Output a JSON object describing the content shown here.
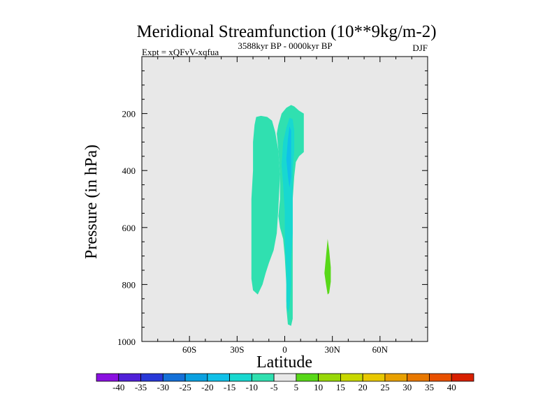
{
  "chart_data": {
    "type": "contour",
    "title": "Meridional Streamfunction (10**9kg/m-2)",
    "subtitle_left": "Expt = xQFvV-xqfua",
    "subtitle_center": "3588kyr BP - 0000kyr BP",
    "subtitle_right": "DJF",
    "xlabel": "Latitude",
    "ylabel": "Pressure (in hPa)",
    "xlim": [
      -90,
      90
    ],
    "ylim": [
      1000,
      0
    ],
    "x_ticks": [
      {
        "value": -60,
        "label": "60S"
      },
      {
        "value": -30,
        "label": "30S"
      },
      {
        "value": 0,
        "label": "0"
      },
      {
        "value": 30,
        "label": "30N"
      },
      {
        "value": 60,
        "label": "60N"
      }
    ],
    "x_minor_step": 10,
    "y_ticks": [
      {
        "value": 200,
        "label": "200"
      },
      {
        "value": 400,
        "label": "400"
      },
      {
        "value": 600,
        "label": "600"
      },
      {
        "value": 800,
        "label": "800"
      },
      {
        "value": 1000,
        "label": "1000"
      }
    ],
    "y_minor_step": 50,
    "colorbar": {
      "levels": [
        "-40",
        "-35",
        "-30",
        "-25",
        "-20",
        "-15",
        "-10",
        "-5",
        "5",
        "10",
        "15",
        "20",
        "25",
        "30",
        "35",
        "40"
      ],
      "colors": [
        "#8a10e0",
        "#5020d8",
        "#2838d8",
        "#1470d8",
        "#0aa0e0",
        "#10c0e8",
        "#18d8d0",
        "#30e0b0",
        "#e8e8e8",
        "#58d818",
        "#98d808",
        "#c8d800",
        "#e8c800",
        "#e8a000",
        "#e87800",
        "#e85000",
        "#d82000"
      ]
    },
    "regions": [
      {
        "name": "negative-west-cell",
        "level_index": 7,
        "color": "#30e0b0",
        "points": [
          [
            -18,
            212
          ],
          [
            -15,
            208
          ],
          [
            -11,
            212
          ],
          [
            -8,
            225
          ],
          [
            -6,
            265
          ],
          [
            -4,
            330
          ],
          [
            -3,
            420
          ],
          [
            -4,
            530
          ],
          [
            -5,
            620
          ],
          [
            -7,
            680
          ],
          [
            -10,
            725
          ],
          [
            -12,
            760
          ],
          [
            -14,
            800
          ],
          [
            -17,
            835
          ],
          [
            -20,
            820
          ],
          [
            -21,
            780
          ],
          [
            -21,
            700
          ],
          [
            -21,
            600
          ],
          [
            -21,
            500
          ],
          [
            -20,
            400
          ],
          [
            -20,
            300
          ],
          [
            -19,
            240
          ]
        ]
      },
      {
        "name": "negative-central-cell",
        "level_index": 7,
        "color": "#30e0b0",
        "points": [
          [
            -4,
            240
          ],
          [
            -2,
            200
          ],
          [
            1,
            180
          ],
          [
            4,
            170
          ],
          [
            6,
            175
          ],
          [
            7,
            180
          ],
          [
            9,
            190
          ],
          [
            12,
            200
          ],
          [
            12,
            230
          ],
          [
            12,
            260
          ],
          [
            12,
            300
          ],
          [
            12,
            335
          ],
          [
            9,
            350
          ],
          [
            7,
            370
          ],
          [
            6,
            420
          ],
          [
            5,
            500
          ],
          [
            5,
            600
          ],
          [
            5,
            700
          ],
          [
            5,
            780
          ],
          [
            5,
            860
          ],
          [
            5,
            920
          ],
          [
            4,
            945
          ],
          [
            2,
            940
          ],
          [
            1,
            880
          ],
          [
            1,
            800
          ],
          [
            0,
            700
          ],
          [
            -1,
            640
          ],
          [
            -3,
            600
          ],
          [
            -4,
            560
          ],
          [
            -3,
            500
          ],
          [
            -3,
            420
          ],
          [
            -4,
            330
          ],
          [
            -5,
            270
          ]
        ]
      },
      {
        "name": "negative-core-cell",
        "level_index": 6,
        "color": "#18d8d0",
        "points": [
          [
            -1,
            300
          ],
          [
            1,
            250
          ],
          [
            3,
            215
          ],
          [
            5,
            220
          ],
          [
            6,
            260
          ],
          [
            6,
            330
          ],
          [
            5,
            400
          ],
          [
            5,
            500
          ],
          [
            5,
            620
          ],
          [
            4,
            720
          ],
          [
            4,
            800
          ],
          [
            3,
            880
          ],
          [
            2,
            900
          ],
          [
            1,
            860
          ],
          [
            1,
            760
          ],
          [
            0,
            640
          ],
          [
            0,
            540
          ],
          [
            -1,
            450
          ],
          [
            -2,
            380
          ]
        ]
      },
      {
        "name": "negative-inner-core",
        "level_index": 5,
        "color": "#10c0e8",
        "points": [
          [
            2,
            290
          ],
          [
            3,
            245
          ],
          [
            4,
            260
          ],
          [
            4,
            330
          ],
          [
            4,
            420
          ],
          [
            3,
            460
          ],
          [
            2,
            420
          ],
          [
            1,
            360
          ]
        ]
      },
      {
        "name": "positive-30N-cell",
        "level_index": 9,
        "color": "#58d818",
        "points": [
          [
            27,
            640
          ],
          [
            28,
            680
          ],
          [
            29,
            740
          ],
          [
            29,
            790
          ],
          [
            28,
            830
          ],
          [
            27,
            835
          ],
          [
            26,
            800
          ],
          [
            25,
            760
          ],
          [
            26,
            700
          ]
        ]
      }
    ]
  }
}
